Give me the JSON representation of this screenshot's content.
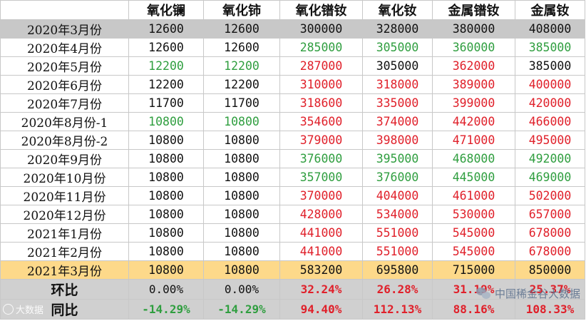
{
  "headers": [
    "",
    "氧化镧",
    "氧化铈",
    "氧化镨钕",
    "氧化钕",
    "金属镨钕",
    "金属钕"
  ],
  "rows": [
    {
      "label": "2020年3月份",
      "style": "gray",
      "values": [
        "12600",
        "12600",
        "300000",
        "328000",
        "380000",
        "408000"
      ],
      "colors": [
        "black",
        "black",
        "black",
        "black",
        "black",
        "black"
      ]
    },
    {
      "label": "2020年4月份",
      "style": "",
      "values": [
        "12600",
        "12600",
        "285000",
        "305000",
        "360000",
        "385000"
      ],
      "colors": [
        "black",
        "black",
        "green",
        "green",
        "green",
        "green"
      ]
    },
    {
      "label": "2020年5月份",
      "style": "",
      "values": [
        "12200",
        "12200",
        "287000",
        "305000",
        "362000",
        "385000"
      ],
      "colors": [
        "green",
        "green",
        "red",
        "black",
        "red",
        "black"
      ]
    },
    {
      "label": "2020年6月份",
      "style": "",
      "values": [
        "12200",
        "12200",
        "310000",
        "318000",
        "389000",
        "400000"
      ],
      "colors": [
        "black",
        "black",
        "red",
        "red",
        "red",
        "red"
      ]
    },
    {
      "label": "2020年7月份",
      "style": "",
      "values": [
        "11700",
        "11700",
        "318600",
        "335000",
        "399000",
        "420000"
      ],
      "colors": [
        "black",
        "black",
        "red",
        "red",
        "red",
        "red"
      ]
    },
    {
      "label": "2020年8月份-1",
      "style": "",
      "values": [
        "10800",
        "10800",
        "354600",
        "374000",
        "442000",
        "466000"
      ],
      "colors": [
        "green",
        "green",
        "red",
        "red",
        "red",
        "red"
      ]
    },
    {
      "label": "2020年8月份-2",
      "style": "",
      "values": [
        "10800",
        "10800",
        "379000",
        "398000",
        "471000",
        "495000"
      ],
      "colors": [
        "black",
        "black",
        "red",
        "red",
        "red",
        "red"
      ]
    },
    {
      "label": "2020年9月份",
      "style": "",
      "values": [
        "10800",
        "10800",
        "376000",
        "395000",
        "468000",
        "492000"
      ],
      "colors": [
        "black",
        "black",
        "green",
        "green",
        "green",
        "green"
      ]
    },
    {
      "label": "2020年10月份",
      "style": "",
      "values": [
        "10800",
        "10800",
        "357000",
        "376000",
        "445000",
        "469000"
      ],
      "colors": [
        "black",
        "black",
        "green",
        "green",
        "green",
        "green"
      ]
    },
    {
      "label": "2020年11月份",
      "style": "",
      "values": [
        "10800",
        "10800",
        "370000",
        "404000",
        "461000",
        "502000"
      ],
      "colors": [
        "black",
        "black",
        "red",
        "red",
        "red",
        "red"
      ]
    },
    {
      "label": "2020年12月份",
      "style": "",
      "values": [
        "10800",
        "10800",
        "428000",
        "534000",
        "530000",
        "657000"
      ],
      "colors": [
        "black",
        "black",
        "red",
        "red",
        "red",
        "red"
      ]
    },
    {
      "label": "2021年1月份",
      "style": "",
      "values": [
        "10800",
        "10800",
        "441000",
        "551000",
        "545000",
        "678000"
      ],
      "colors": [
        "black",
        "black",
        "red",
        "red",
        "red",
        "red"
      ]
    },
    {
      "label": "2021年2月份",
      "style": "",
      "values": [
        "10800",
        "10800",
        "441000",
        "551000",
        "545000",
        "678000"
      ],
      "colors": [
        "black",
        "black",
        "red",
        "red",
        "red",
        "red"
      ]
    },
    {
      "label": "2021年3月份",
      "style": "yellow",
      "values": [
        "10800",
        "10800",
        "583200",
        "695800",
        "715000",
        "850000"
      ],
      "colors": [
        "black",
        "black",
        "black",
        "black",
        "black",
        "black"
      ]
    }
  ],
  "footer_rows": [
    {
      "label": "环比",
      "values": [
        "0.00%",
        "0.00%",
        "32.24%",
        "26.28%",
        "31.19%",
        "25.37%"
      ],
      "colors": [
        "black",
        "black",
        "red",
        "red",
        "red",
        "red"
      ]
    },
    {
      "label": "同比",
      "values": [
        "-14.29%",
        "-14.29%",
        "94.40%",
        "112.13%",
        "88.16%",
        "108.33%"
      ],
      "colors": [
        "green",
        "green",
        "red",
        "red",
        "red",
        "red"
      ]
    }
  ],
  "watermarks": {
    "right": "中国稀金谷大数据",
    "left": "大数据"
  },
  "colors": {
    "green": "#2f9e3f",
    "red": "#e0202a",
    "black": "#111111",
    "highlight_gray": "#c8c8c8",
    "highlight_yellow": "#fdd98a"
  }
}
